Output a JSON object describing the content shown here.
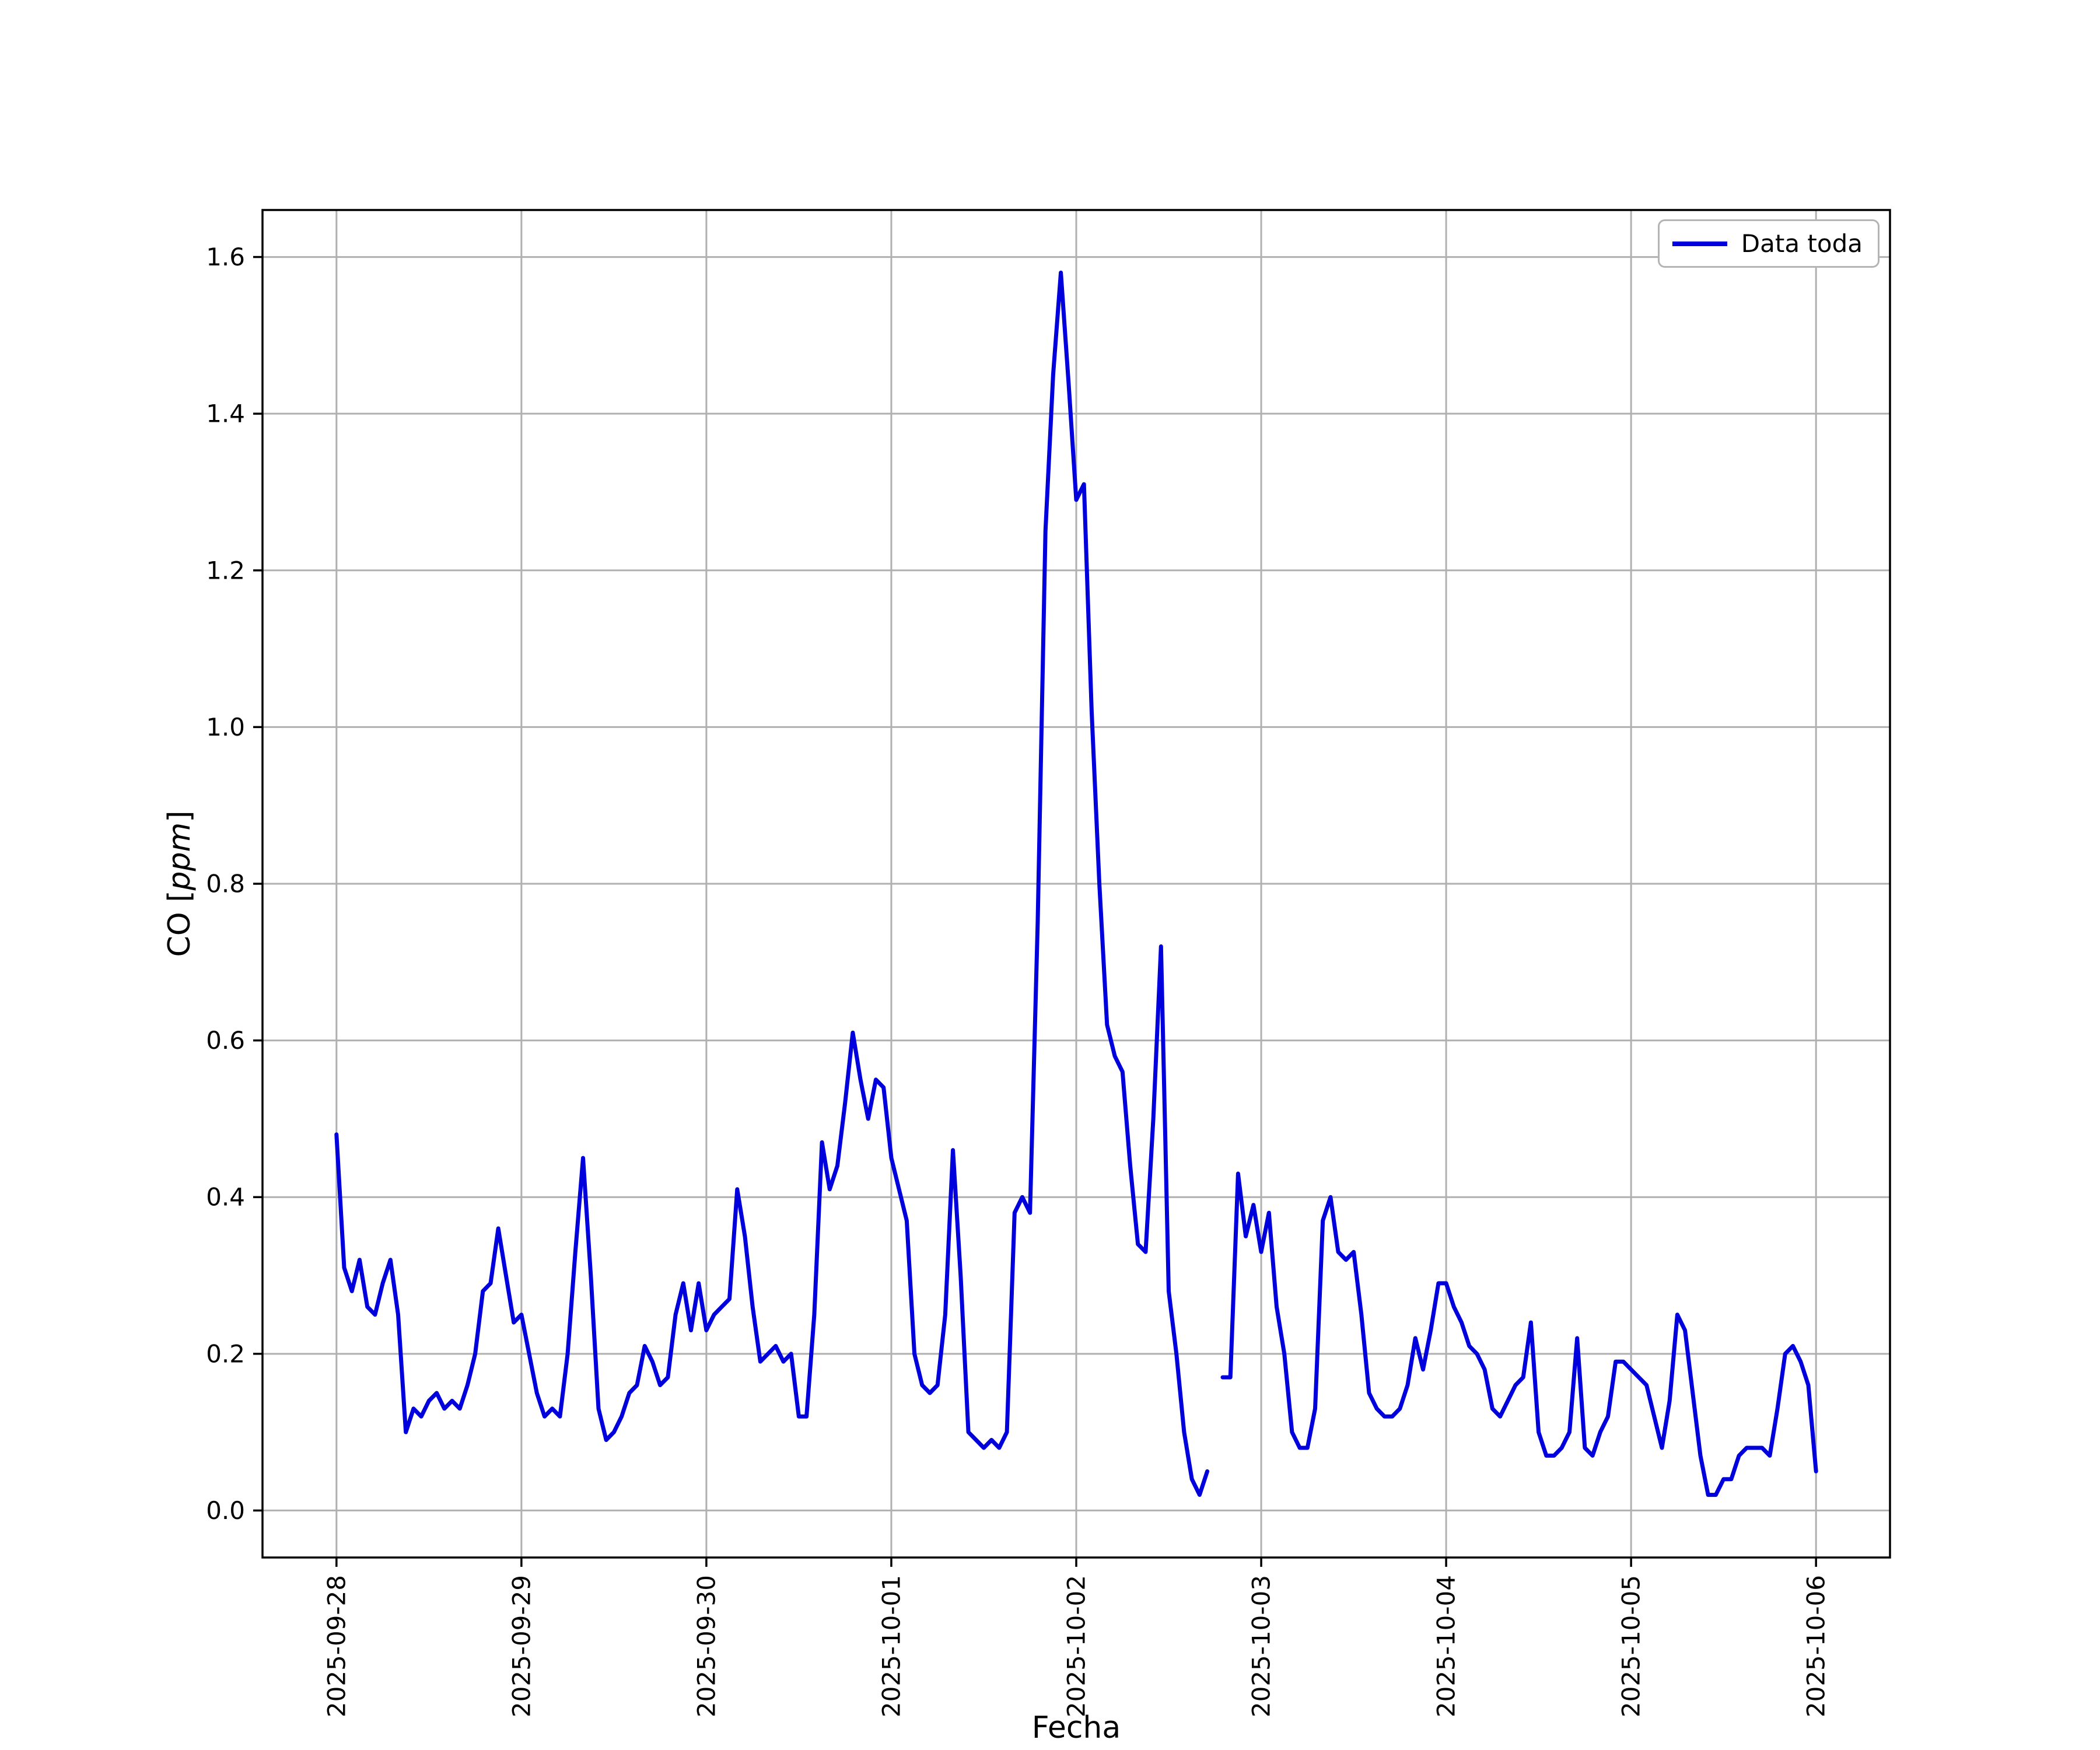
{
  "figure": {
    "background": "#ffffff"
  },
  "chart_data": {
    "type": "line",
    "title": "",
    "xlabel": "Fecha",
    "ylabel": "CO [ppm]",
    "ylabel_parts": {
      "prefix": "CO [",
      "italic": "ppm",
      "suffix": "]"
    },
    "legend": {
      "position": "upper right",
      "entries": [
        "Data toda"
      ]
    },
    "grid": true,
    "x_tick_labels": [
      "2025-09-28",
      "2025-09-29",
      "2025-09-30",
      "2025-10-01",
      "2025-10-02",
      "2025-10-03",
      "2025-10-04",
      "2025-10-05",
      "2025-10-06"
    ],
    "x_tick_positions_days": [
      0,
      1,
      2,
      3,
      4,
      5,
      6,
      7,
      8
    ],
    "y_tick_labels": [
      "0.0",
      "0.2",
      "0.4",
      "0.6",
      "0.8",
      "1.0",
      "1.2",
      "1.4",
      "1.6"
    ],
    "y_ticks": [
      0.0,
      0.2,
      0.4,
      0.6,
      0.8,
      1.0,
      1.2,
      1.4,
      1.6
    ],
    "xlim_days": [
      -0.4,
      8.4
    ],
    "ylim": [
      -0.06,
      1.66
    ],
    "colors": {
      "line": "#0000dd",
      "grid": "#b0b0b0",
      "spine": "#000000",
      "legend_edge": "#b4b4b4"
    },
    "series": [
      {
        "name": "Data toda",
        "color": "#0000dd",
        "x_start_label": "2025-09-28",
        "x_step_hours": 1,
        "values": [
          0.48,
          0.31,
          0.28,
          0.32,
          0.26,
          0.25,
          0.29,
          0.32,
          0.25,
          0.1,
          0.13,
          0.12,
          0.14,
          0.15,
          0.13,
          0.14,
          0.13,
          0.16,
          0.2,
          0.28,
          0.29,
          0.36,
          0.3,
          0.24,
          0.25,
          0.2,
          0.15,
          0.12,
          0.13,
          0.12,
          0.2,
          0.33,
          0.45,
          0.3,
          0.13,
          0.09,
          0.1,
          0.12,
          0.15,
          0.16,
          0.21,
          0.19,
          0.16,
          0.17,
          0.25,
          0.29,
          0.23,
          0.29,
          0.23,
          0.25,
          0.26,
          0.27,
          0.41,
          0.35,
          0.26,
          0.19,
          0.2,
          0.21,
          0.19,
          0.2,
          0.12,
          0.12,
          0.25,
          0.47,
          0.41,
          0.44,
          0.52,
          0.61,
          0.55,
          0.5,
          0.55,
          0.54,
          0.45,
          0.41,
          0.37,
          0.2,
          0.16,
          0.15,
          0.16,
          0.25,
          0.46,
          0.3,
          0.1,
          0.09,
          0.08,
          0.09,
          0.08,
          0.1,
          0.38,
          0.4,
          0.38,
          0.75,
          1.25,
          1.45,
          1.58,
          1.44,
          1.29,
          1.31,
          1.02,
          0.8,
          0.62,
          0.58,
          0.56,
          0.44,
          0.34,
          0.33,
          0.5,
          0.72,
          0.28,
          0.2,
          0.1,
          0.04,
          0.02,
          0.05,
          null,
          0.17,
          0.17,
          0.43,
          0.35,
          0.39,
          0.33,
          0.38,
          0.26,
          0.2,
          0.1,
          0.08,
          0.08,
          0.13,
          0.37,
          0.4,
          0.33,
          0.32,
          0.33,
          0.25,
          0.15,
          0.13,
          0.12,
          0.12,
          0.13,
          0.16,
          0.22,
          0.18,
          0.23,
          0.29,
          0.29,
          0.26,
          0.24,
          0.21,
          0.2,
          0.18,
          0.13,
          0.12,
          0.14,
          0.16,
          0.17,
          0.24,
          0.1,
          0.07,
          0.07,
          0.08,
          0.1,
          0.22,
          0.08,
          0.07,
          0.1,
          0.12,
          0.19,
          0.19,
          0.18,
          0.17,
          0.16,
          0.12,
          0.08,
          0.14,
          0.25,
          0.23,
          0.15,
          0.07,
          0.02,
          0.02,
          0.04,
          0.04,
          0.07,
          0.08,
          0.08,
          0.08,
          0.07,
          0.13,
          0.2,
          0.21,
          0.19,
          0.16,
          0.05
        ]
      }
    ]
  }
}
